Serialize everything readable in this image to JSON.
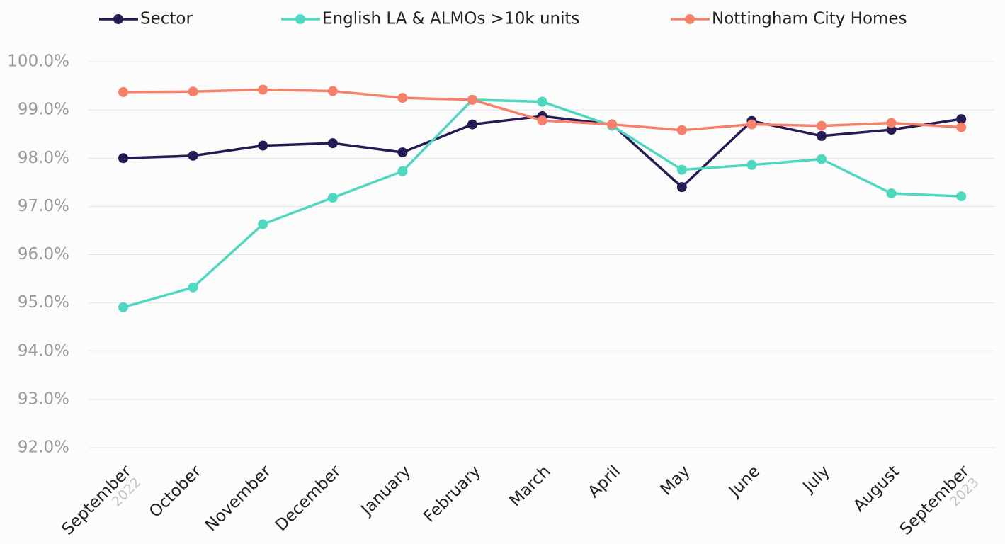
{
  "chart_data": {
    "type": "line",
    "categories": [
      "September",
      "October",
      "November",
      "December",
      "January",
      "February",
      "March",
      "April",
      "May",
      "June",
      "July",
      "August",
      "September"
    ],
    "category_sublabels": [
      "2022",
      null,
      null,
      null,
      null,
      null,
      null,
      null,
      null,
      null,
      null,
      null,
      "2023"
    ],
    "series": [
      {
        "name": "Sector",
        "color": "#261a55",
        "values": [
          98.0,
          98.05,
          98.26,
          98.31,
          98.12,
          98.7,
          98.87,
          98.7,
          97.4,
          98.77,
          98.46,
          98.59,
          98.81
        ]
      },
      {
        "name": "English LA & ALMOs >10k units",
        "color": "#4fd8c0",
        "values": [
          94.91,
          95.32,
          96.63,
          97.18,
          97.73,
          99.21,
          99.17,
          98.67,
          97.76,
          97.86,
          97.98,
          97.27,
          97.21
        ]
      },
      {
        "name": "Nottingham City Homes",
        "color": "#f7806a",
        "values": [
          99.37,
          99.38,
          99.42,
          99.39,
          99.25,
          99.21,
          98.78,
          98.7,
          98.58,
          98.7,
          98.67,
          98.73,
          98.64
        ]
      }
    ],
    "ylim": [
      92,
      100
    ],
    "yticks": [
      {
        "value": 92,
        "label": "92.0%"
      },
      {
        "value": 93,
        "label": "93.0%"
      },
      {
        "value": 94,
        "label": "94.0%"
      },
      {
        "value": 95,
        "label": "95.0%"
      },
      {
        "value": 96,
        "label": "96.0%"
      },
      {
        "value": 97,
        "label": "97.0%"
      },
      {
        "value": 98,
        "label": "98.0%"
      },
      {
        "value": 99,
        "label": "99.0%"
      },
      {
        "value": 100,
        "label": "100.0%"
      }
    ],
    "grid": true,
    "legend": "top"
  }
}
